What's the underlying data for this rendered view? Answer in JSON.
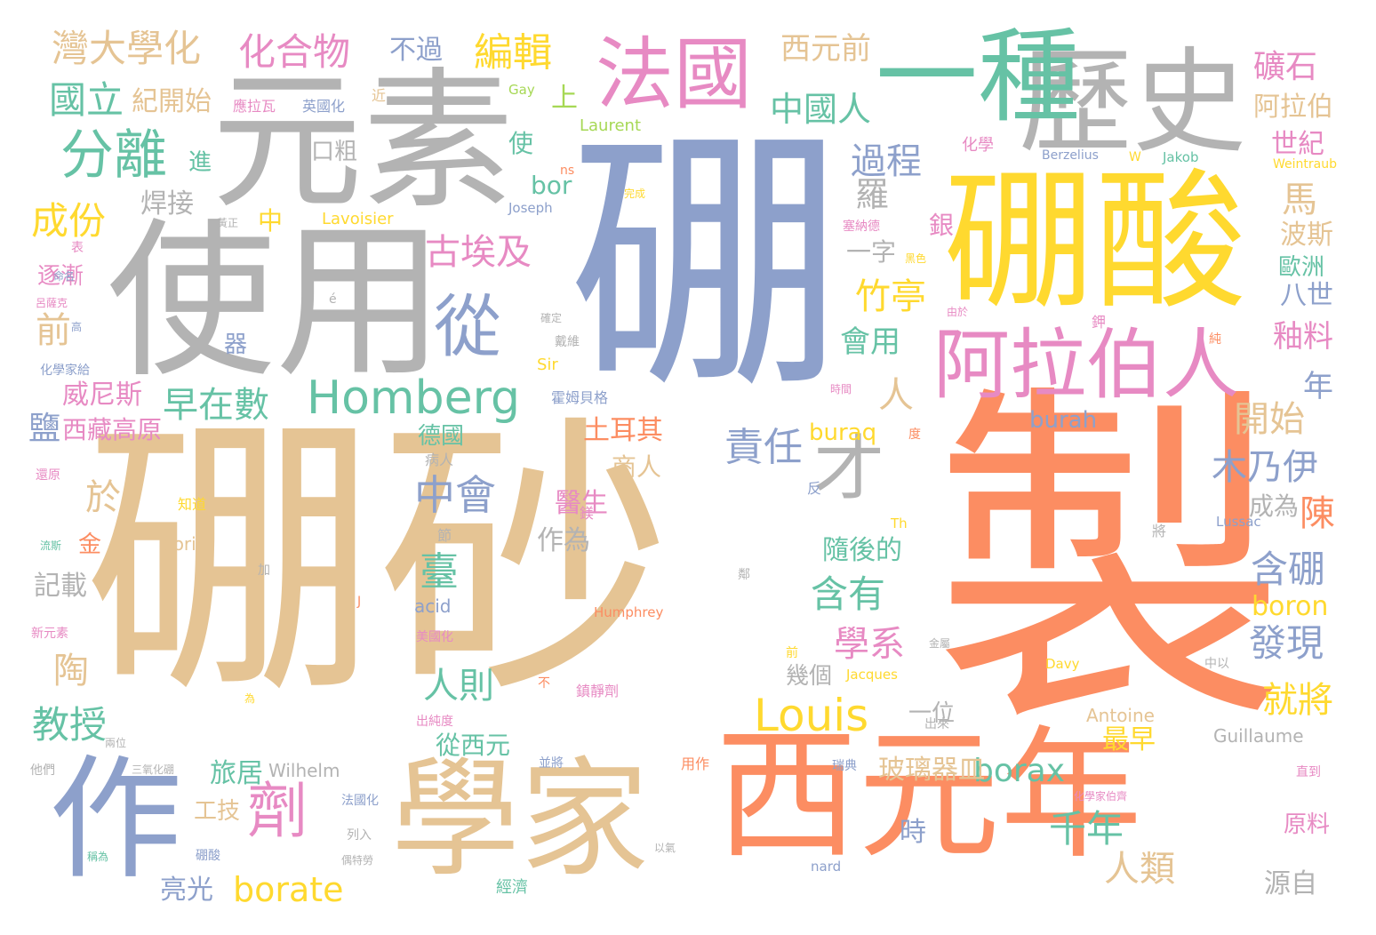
{
  "palette": {
    "tan": "#E5C494",
    "orange": "#FC8D62",
    "blue": "#8DA0CB",
    "pink": "#E78AC3",
    "green": "#66C2A5",
    "yellow": "#FFD92F",
    "gray": "#B3B3B3",
    "lime": "#A6D854"
  },
  "words": [
    {
      "text": "硼砂",
      "color": "tan"
    },
    {
      "text": "製",
      "color": "orange"
    },
    {
      "text": "硼",
      "color": "blue"
    },
    {
      "text": "使用",
      "color": "gray"
    },
    {
      "text": "元素",
      "color": "gray"
    },
    {
      "text": "硼酸",
      "color": "yellow"
    },
    {
      "text": "歷史",
      "color": "gray"
    },
    {
      "text": "一種",
      "color": "green"
    },
    {
      "text": "西元年",
      "color": "orange"
    },
    {
      "text": "學家",
      "color": "tan"
    },
    {
      "text": "作",
      "color": "blue"
    },
    {
      "text": "法國",
      "color": "pink"
    },
    {
      "text": "阿拉伯人",
      "color": "pink"
    },
    {
      "text": "劑",
      "color": "pink"
    },
    {
      "text": "從",
      "color": "blue"
    },
    {
      "text": "Homberg",
      "color": "green"
    },
    {
      "text": "分離",
      "color": "green"
    },
    {
      "text": "Louis",
      "color": "yellow"
    },
    {
      "text": "才",
      "color": "gray"
    },
    {
      "text": "早在數",
      "color": "green"
    },
    {
      "text": "古埃及",
      "color": "pink"
    },
    {
      "text": "中會",
      "color": "blue"
    },
    {
      "text": "borax",
      "color": "green"
    },
    {
      "text": "borate",
      "color": "yellow"
    },
    {
      "text": "化合物",
      "color": "pink"
    },
    {
      "text": "灣大學化",
      "color": "tan"
    },
    {
      "text": "國立",
      "color": "green"
    },
    {
      "text": "編輯",
      "color": "yellow"
    },
    {
      "text": "西元前",
      "color": "tan"
    },
    {
      "text": "中國人",
      "color": "green"
    },
    {
      "text": "礦石",
      "color": "pink"
    },
    {
      "text": "阿拉伯",
      "color": "tan"
    },
    {
      "text": "世紀",
      "color": "pink"
    },
    {
      "text": "紀開始",
      "color": "tan"
    },
    {
      "text": "不過",
      "color": "blue"
    },
    {
      "text": "過程",
      "color": "blue"
    },
    {
      "text": "成份",
      "color": "yellow"
    },
    {
      "text": "竹亭",
      "color": "yellow"
    },
    {
      "text": "責任",
      "color": "blue"
    },
    {
      "text": "木乃伊",
      "color": "blue"
    },
    {
      "text": "開始",
      "color": "tan"
    },
    {
      "text": "教授",
      "color": "green"
    },
    {
      "text": "臺",
      "color": "green"
    },
    {
      "text": "含有",
      "color": "green"
    },
    {
      "text": "學系",
      "color": "pink"
    },
    {
      "text": "含硼",
      "color": "blue"
    },
    {
      "text": "發現",
      "color": "blue"
    },
    {
      "text": "就將",
      "color": "yellow"
    },
    {
      "text": "人則",
      "color": "green"
    },
    {
      "text": "千年",
      "color": "green"
    },
    {
      "text": "人類",
      "color": "tan"
    },
    {
      "text": "釉料",
      "color": "pink"
    },
    {
      "text": "八世",
      "color": "blue"
    },
    {
      "text": "波斯",
      "color": "tan"
    },
    {
      "text": "歐洲",
      "color": "green"
    },
    {
      "text": "陳",
      "color": "orange"
    },
    {
      "text": "馬",
      "color": "tan"
    },
    {
      "text": "威尼斯",
      "color": "pink"
    },
    {
      "text": "鹽",
      "color": "blue"
    },
    {
      "text": "西藏高原",
      "color": "pink"
    },
    {
      "text": "土耳其",
      "color": "orange"
    },
    {
      "text": "德國",
      "color": "green"
    },
    {
      "text": "商人",
      "color": "tan"
    },
    {
      "text": "醫生",
      "color": "pink"
    },
    {
      "text": "作為",
      "color": "gray"
    },
    {
      "text": "隨後的",
      "color": "green"
    },
    {
      "text": "會用",
      "color": "green"
    },
    {
      "text": "一字",
      "color": "gray"
    },
    {
      "text": "羅",
      "color": "gray"
    },
    {
      "text": "銀",
      "color": "pink"
    },
    {
      "text": "bor",
      "color": "green"
    },
    {
      "text": "焊接",
      "color": "gray"
    },
    {
      "text": "口粗",
      "color": "gray"
    },
    {
      "text": "使",
      "color": "green"
    },
    {
      "text": "進",
      "color": "green"
    },
    {
      "text": "上",
      "color": "lime"
    },
    {
      "text": "中",
      "color": "yellow"
    },
    {
      "text": "前",
      "color": "tan"
    },
    {
      "text": "逐漸",
      "color": "pink"
    },
    {
      "text": "器",
      "color": "blue"
    },
    {
      "text": "於",
      "color": "tan"
    },
    {
      "text": "金",
      "color": "orange"
    },
    {
      "text": "記載",
      "color": "gray"
    },
    {
      "text": "陶",
      "color": "tan"
    },
    {
      "text": "從西元",
      "color": "green"
    },
    {
      "text": "最早",
      "color": "yellow"
    },
    {
      "text": "玻璃器皿",
      "color": "tan"
    },
    {
      "text": "一位",
      "color": "gray"
    },
    {
      "text": "幾個",
      "color": "gray"
    },
    {
      "text": "旅居",
      "color": "green"
    },
    {
      "text": "工技",
      "color": "tan"
    },
    {
      "text": "亮光",
      "color": "blue"
    },
    {
      "text": "時",
      "color": "blue"
    },
    {
      "text": "人",
      "color": "tan"
    },
    {
      "text": "年",
      "color": "blue"
    },
    {
      "text": "成為",
      "color": "gray"
    },
    {
      "text": "源自",
      "color": "gray"
    },
    {
      "text": "原料",
      "color": "pink"
    },
    {
      "text": "boron",
      "color": "yellow"
    },
    {
      "text": "buraq",
      "color": "yellow"
    },
    {
      "text": "burah",
      "color": "blue"
    },
    {
      "text": "Lavoisier",
      "color": "yellow"
    },
    {
      "text": "Laurent",
      "color": "lime"
    },
    {
      "text": "Joseph",
      "color": "blue"
    },
    {
      "text": "Antoine",
      "color": "tan"
    },
    {
      "text": "Guillaume",
      "color": "gray"
    },
    {
      "text": "Wilhelm",
      "color": "gray"
    },
    {
      "text": "Humphrey",
      "color": "orange"
    },
    {
      "text": "Davy",
      "color": "yellow"
    },
    {
      "text": "Jacques",
      "color": "yellow"
    },
    {
      "text": "Lussac",
      "color": "blue"
    },
    {
      "text": "boric",
      "color": "tan"
    },
    {
      "text": "acid",
      "color": "blue"
    },
    {
      "text": "Sir",
      "color": "yellow"
    },
    {
      "text": "Gay",
      "color": "lime"
    },
    {
      "text": "Berzelius",
      "color": "blue"
    },
    {
      "text": "Jakob",
      "color": "green"
    },
    {
      "text": "Weintraub",
      "color": "yellow"
    },
    {
      "text": "nard",
      "color": "blue"
    },
    {
      "text": "Th",
      "color": "yellow"
    },
    {
      "text": "W",
      "color": "yellow"
    },
    {
      "text": "ns",
      "color": "orange"
    },
    {
      "text": "J",
      "color": "orange"
    },
    {
      "text": "é",
      "color": "gray"
    },
    {
      "text": "化學",
      "color": "pink"
    },
    {
      "text": "霍姆貝格",
      "color": "blue"
    },
    {
      "text": "英國化",
      "color": "blue"
    },
    {
      "text": "應拉瓦",
      "color": "pink"
    },
    {
      "text": "近",
      "color": "tan"
    },
    {
      "text": "完成",
      "color": "yellow"
    },
    {
      "text": "黃正",
      "color": "gray"
    },
    {
      "text": "表",
      "color": "pink"
    },
    {
      "text": "黑色",
      "color": "yellow"
    },
    {
      "text": "塞納德",
      "color": "pink"
    },
    {
      "text": "命名",
      "color": "blue"
    },
    {
      "text": "呂薩克",
      "color": "pink"
    },
    {
      "text": "高",
      "color": "blue"
    },
    {
      "text": "化學家給",
      "color": "blue"
    },
    {
      "text": "確定",
      "color": "gray"
    },
    {
      "text": "戴維",
      "color": "gray"
    },
    {
      "text": "由於",
      "color": "pink"
    },
    {
      "text": "鉀",
      "color": "pink"
    },
    {
      "text": "純",
      "color": "orange"
    },
    {
      "text": "時間",
      "color": "pink"
    },
    {
      "text": "度",
      "color": "orange"
    },
    {
      "text": "病人",
      "color": "gray"
    },
    {
      "text": "還原",
      "color": "pink"
    },
    {
      "text": "知道",
      "color": "yellow"
    },
    {
      "text": "鎂",
      "color": "pink"
    },
    {
      "text": "反",
      "color": "blue"
    },
    {
      "text": "將",
      "color": "gray"
    },
    {
      "text": "節",
      "color": "gray"
    },
    {
      "text": "流斯",
      "color": "green"
    },
    {
      "text": "加",
      "color": "gray"
    },
    {
      "text": "鄰",
      "color": "gray"
    },
    {
      "text": "新元素",
      "color": "pink"
    },
    {
      "text": "美國化",
      "color": "pink"
    },
    {
      "text": "金屬",
      "color": "gray"
    },
    {
      "text": "前",
      "color": "yellow"
    },
    {
      "text": "鎮靜劑",
      "color": "pink"
    },
    {
      "text": "不",
      "color": "orange"
    },
    {
      "text": "中以",
      "color": "gray"
    },
    {
      "text": "為",
      "color": "yellow"
    },
    {
      "text": "出純度",
      "color": "pink"
    },
    {
      "text": "出來",
      "color": "gray"
    },
    {
      "text": "兩位",
      "color": "gray"
    },
    {
      "text": "並將",
      "color": "blue"
    },
    {
      "text": "用作",
      "color": "orange"
    },
    {
      "text": "瑞典",
      "color": "blue"
    },
    {
      "text": "化學家伯齊",
      "color": "pink"
    },
    {
      "text": "直到",
      "color": "pink"
    },
    {
      "text": "他們",
      "color": "gray"
    },
    {
      "text": "三氧化硼",
      "color": "gray"
    },
    {
      "text": "法國化",
      "color": "blue"
    },
    {
      "text": "列入",
      "color": "gray"
    },
    {
      "text": "稱為",
      "color": "green"
    },
    {
      "text": "硼酸",
      "color": "blue"
    },
    {
      "text": "偶特勞",
      "color": "gray"
    },
    {
      "text": "經濟",
      "color": "green"
    },
    {
      "text": "以氣",
      "color": "gray"
    }
  ]
}
